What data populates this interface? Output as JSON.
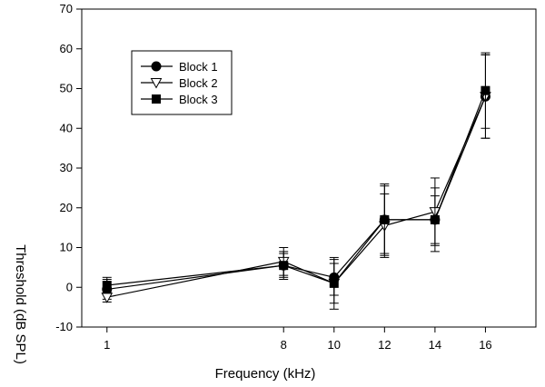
{
  "chart_data": {
    "type": "line",
    "xlabel": "Frequency (kHz)",
    "ylabel": "Threshold (dB SPL)",
    "ylim": [
      -10,
      70
    ],
    "xlim": [
      0,
      18
    ],
    "y_ticks": [
      -10,
      0,
      10,
      20,
      30,
      40,
      50,
      60,
      70
    ],
    "categories": [
      "1",
      "8",
      "10",
      "12",
      "14",
      "16"
    ],
    "x": [
      1,
      8,
      10,
      12,
      14,
      16
    ],
    "grid": false,
    "legend_position": "top-left",
    "series": [
      {
        "name": "Block 1",
        "marker": "circle-filled",
        "values": [
          -0.5,
          5.5,
          2.5,
          17.0,
          17.0,
          48.0
        ],
        "errors": [
          2.5,
          3.0,
          4.5,
          8.5,
          8.0,
          10.5
        ]
      },
      {
        "name": "Block 2",
        "marker": "triangle-down-open",
        "values": [
          -2.5,
          6.5,
          1.0,
          15.5,
          19.0,
          48.0
        ],
        "errors": [
          1.2,
          3.5,
          6.5,
          8.0,
          8.5,
          10.5
        ]
      },
      {
        "name": "Block 3",
        "marker": "square-filled",
        "values": [
          0.5,
          5.5,
          1.0,
          17.0,
          17.0,
          49.5
        ],
        "errors": [
          2.0,
          3.5,
          5.0,
          9.0,
          6.0,
          9.5
        ]
      }
    ]
  }
}
